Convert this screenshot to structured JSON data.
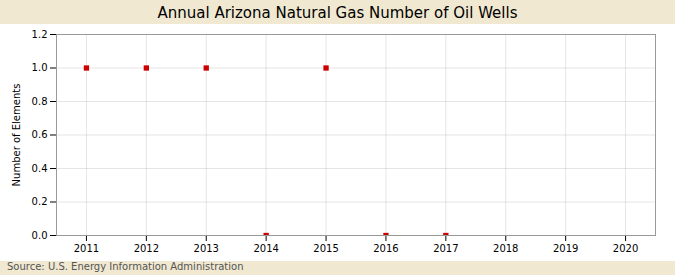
{
  "chart_data": {
    "type": "scatter",
    "title": "Annual Arizona Natural Gas Number of Oil Wells",
    "ylabel": "Number of Elements",
    "annotations": [
      "Source: U.S. Energy Information Administration"
    ],
    "x": [
      2011,
      2012,
      2013,
      2014,
      2015,
      2016,
      2017
    ],
    "values": [
      1.0,
      1.0,
      1.0,
      0.0,
      1.0,
      0.0,
      0.0
    ],
    "color": "#cc0000",
    "marker": "square",
    "xlim": [
      2010.5,
      2020.5
    ],
    "xticks": [
      2011,
      2012,
      2013,
      2014,
      2015,
      2016,
      2017,
      2018,
      2019,
      2020
    ],
    "ylim": [
      0.0,
      1.2
    ],
    "yticks": [
      {
        "value": 0,
        "label": "0.0"
      },
      0.2,
      0.4,
      0.6,
      0.8,
      {
        "value": 1,
        "label": "1.0"
      },
      1.2
    ],
    "grid": true
  }
}
